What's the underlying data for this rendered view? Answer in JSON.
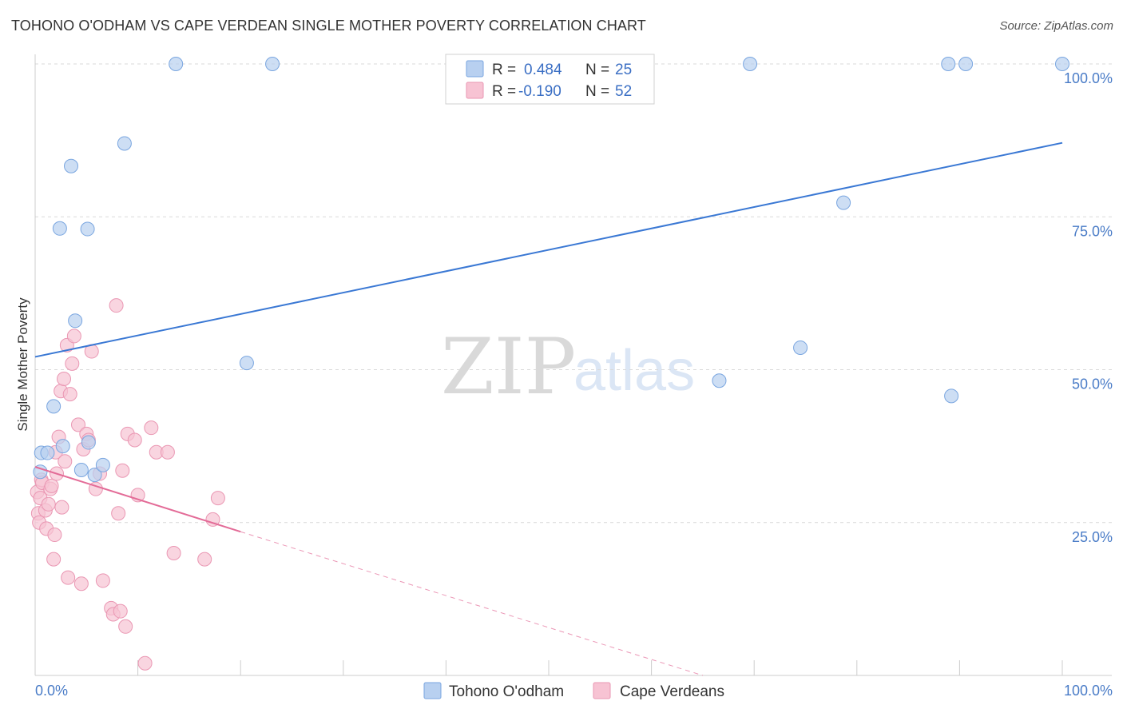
{
  "header": {
    "title": "TOHONO O'ODHAM VS CAPE VERDEAN SINGLE MOTHER POVERTY CORRELATION CHART",
    "source": "Source: ZipAtlas.com"
  },
  "watermark": {
    "zip": "ZIP",
    "atlas": "atlas"
  },
  "legend": {
    "r_label": "R =",
    "n_label": "N =",
    "rows": [
      {
        "r": "0.484",
        "n": "25"
      },
      {
        "r": "-0.190",
        "n": "52"
      }
    ]
  },
  "bottom_legend": [
    "Tohono O'odham",
    "Cape Verdeans"
  ],
  "colors": {
    "blue_fill": "#b8d0f0",
    "blue_stroke": "#7aa6e0",
    "blue_line": "#3a78d4",
    "pink_fill": "#f7c3d3",
    "pink_stroke": "#ea97b3",
    "pink_line": "#e36b97",
    "grid": "#d9d9d9"
  },
  "chart_data": {
    "type": "scatter",
    "title": "TOHONO O'ODHAM VS CAPE VERDEAN SINGLE MOTHER POVERTY CORRELATION CHART",
    "xlabel": "",
    "ylabel": "Single Mother Poverty",
    "xlim": [
      0,
      100
    ],
    "ylim": [
      0,
      100
    ],
    "x_tick_labels": [
      "0.0%",
      "100.0%"
    ],
    "y_ticks": [
      25,
      50,
      75,
      100
    ],
    "y_tick_labels": [
      "25.0%",
      "50.0%",
      "75.0%",
      "100.0%"
    ],
    "grid": true,
    "legend_position": "top-center",
    "series": [
      {
        "name": "Tohono O'odham",
        "r": 0.484,
        "n": 25,
        "trend": {
          "x": [
            0,
            100
          ],
          "y": [
            52.1,
            87.1
          ]
        },
        "points": [
          {
            "x": 0.5,
            "y": 33.3
          },
          {
            "x": 0.6,
            "y": 36.4
          },
          {
            "x": 1.2,
            "y": 36.4
          },
          {
            "x": 1.8,
            "y": 44.0
          },
          {
            "x": 2.4,
            "y": 73.1
          },
          {
            "x": 2.7,
            "y": 37.5
          },
          {
            "x": 3.5,
            "y": 83.3
          },
          {
            "x": 3.9,
            "y": 58.0
          },
          {
            "x": 4.5,
            "y": 33.6
          },
          {
            "x": 5.1,
            "y": 73.0
          },
          {
            "x": 5.2,
            "y": 38.1
          },
          {
            "x": 5.8,
            "y": 32.8
          },
          {
            "x": 6.6,
            "y": 34.4
          },
          {
            "x": 8.7,
            "y": 87.0
          },
          {
            "x": 13.7,
            "y": 100.0
          },
          {
            "x": 20.6,
            "y": 51.1
          },
          {
            "x": 23.1,
            "y": 100.0
          },
          {
            "x": 66.6,
            "y": 48.2
          },
          {
            "x": 69.6,
            "y": 100.0
          },
          {
            "x": 74.5,
            "y": 53.6
          },
          {
            "x": 78.7,
            "y": 77.3
          },
          {
            "x": 88.9,
            "y": 100.0
          },
          {
            "x": 89.2,
            "y": 45.7
          },
          {
            "x": 90.6,
            "y": 100.0
          },
          {
            "x": 100.0,
            "y": 100.0
          }
        ]
      },
      {
        "name": "Cape Verdeans",
        "r": -0.19,
        "n": 52,
        "trend": {
          "x": [
            0,
            20
          ],
          "y": [
            34.1,
            23.5
          ]
        },
        "trend_extension": {
          "x": [
            20,
            65
          ],
          "y": [
            23.5,
            0
          ]
        },
        "points": [
          {
            "x": 0.2,
            "y": 30.0
          },
          {
            "x": 0.3,
            "y": 26.5
          },
          {
            "x": 0.4,
            "y": 25.0
          },
          {
            "x": 0.5,
            "y": 29.0
          },
          {
            "x": 0.6,
            "y": 32.0
          },
          {
            "x": 0.7,
            "y": 31.5
          },
          {
            "x": 1.0,
            "y": 27.0
          },
          {
            "x": 1.1,
            "y": 24.0
          },
          {
            "x": 1.3,
            "y": 28.0
          },
          {
            "x": 1.5,
            "y": 30.5
          },
          {
            "x": 1.6,
            "y": 31.0
          },
          {
            "x": 1.8,
            "y": 19.0
          },
          {
            "x": 1.9,
            "y": 23.0
          },
          {
            "x": 2.0,
            "y": 36.5
          },
          {
            "x": 2.1,
            "y": 33.0
          },
          {
            "x": 2.3,
            "y": 39.0
          },
          {
            "x": 2.5,
            "y": 46.5
          },
          {
            "x": 2.6,
            "y": 27.5
          },
          {
            "x": 2.8,
            "y": 48.5
          },
          {
            "x": 2.9,
            "y": 35.0
          },
          {
            "x": 3.1,
            "y": 54.0
          },
          {
            "x": 3.2,
            "y": 16.0
          },
          {
            "x": 3.4,
            "y": 46.0
          },
          {
            "x": 3.6,
            "y": 51.0
          },
          {
            "x": 3.8,
            "y": 55.5
          },
          {
            "x": 4.2,
            "y": 41.0
          },
          {
            "x": 4.5,
            "y": 15.0
          },
          {
            "x": 4.7,
            "y": 37.0
          },
          {
            "x": 5.0,
            "y": 39.5
          },
          {
            "x": 5.2,
            "y": 38.5
          },
          {
            "x": 5.5,
            "y": 53.0
          },
          {
            "x": 5.9,
            "y": 30.5
          },
          {
            "x": 6.3,
            "y": 33.0
          },
          {
            "x": 6.6,
            "y": 15.5
          },
          {
            "x": 7.4,
            "y": 11.0
          },
          {
            "x": 7.6,
            "y": 10.0
          },
          {
            "x": 7.9,
            "y": 60.5
          },
          {
            "x": 8.1,
            "y": 26.5
          },
          {
            "x": 8.3,
            "y": 10.5
          },
          {
            "x": 8.5,
            "y": 33.5
          },
          {
            "x": 8.8,
            "y": 8.0
          },
          {
            "x": 9.0,
            "y": 39.5
          },
          {
            "x": 9.7,
            "y": 38.5
          },
          {
            "x": 10.0,
            "y": 29.5
          },
          {
            "x": 10.7,
            "y": 2.0
          },
          {
            "x": 11.3,
            "y": 40.5
          },
          {
            "x": 11.8,
            "y": 36.5
          },
          {
            "x": 12.9,
            "y": 36.5
          },
          {
            "x": 13.5,
            "y": 20.0
          },
          {
            "x": 16.5,
            "y": 19.0
          },
          {
            "x": 17.3,
            "y": 25.5
          },
          {
            "x": 17.8,
            "y": 29.0
          }
        ]
      }
    ]
  }
}
